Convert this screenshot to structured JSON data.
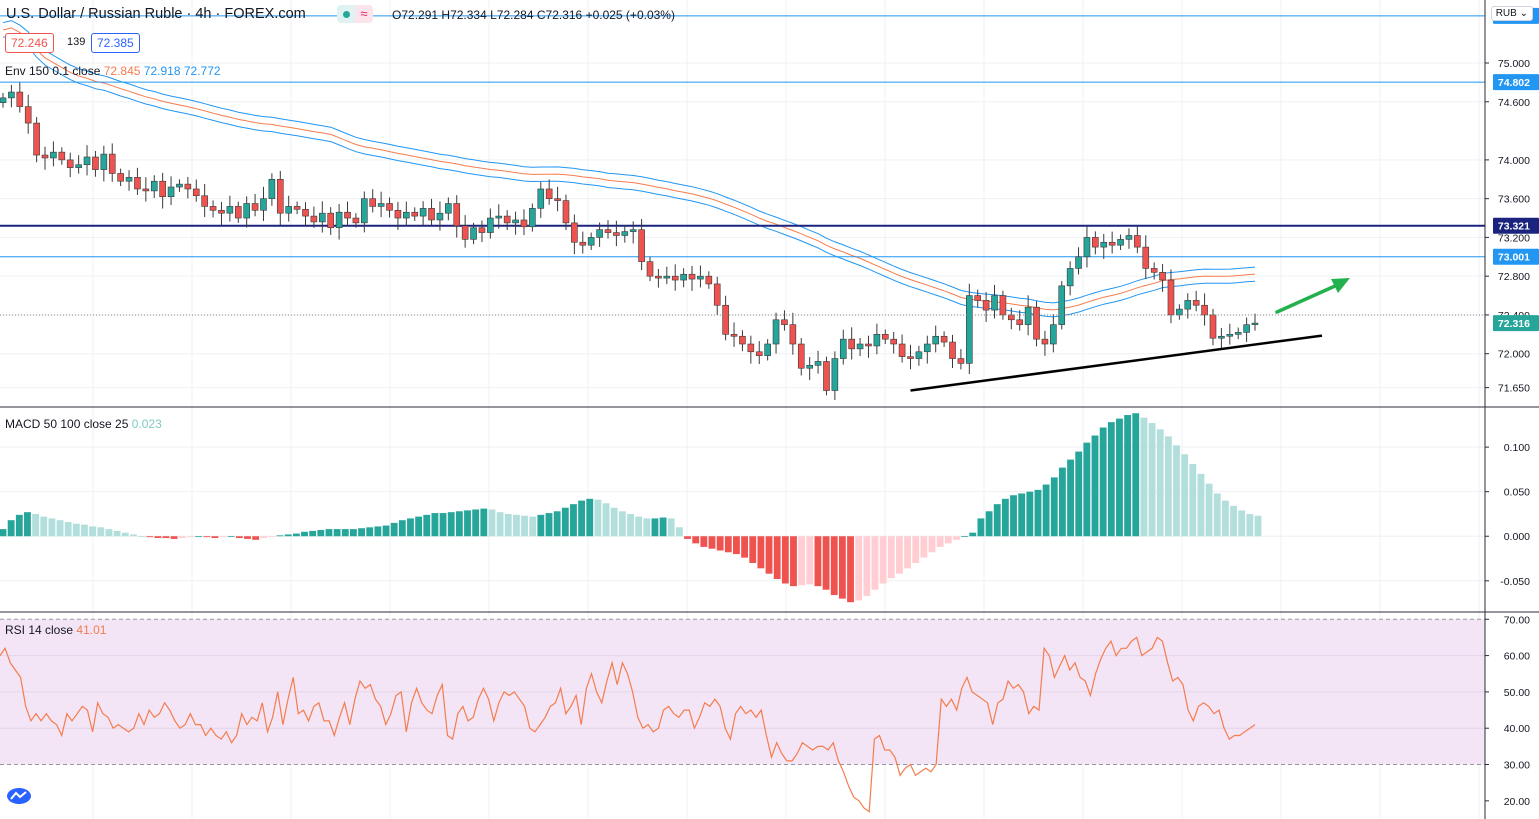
{
  "header": {
    "title": "U.S. Dollar / Russian Ruble · 4h · FOREX.com",
    "ohlc": {
      "open_label": "O",
      "open": "72.291",
      "high_label": "H",
      "high": "72.334",
      "low_label": "L",
      "low": "72.284",
      "close_label": "C",
      "close": "72.316",
      "change": "+0.025 (+0.03%)"
    },
    "sell_price": "72.246",
    "spread": "139",
    "buy_price": "72.385",
    "currency_button": "RUB"
  },
  "colors": {
    "up": "#26a69a",
    "down": "#ef5350",
    "env_mid": "#f57c4d",
    "env_band": "#2196f3",
    "hline": "#2196f3",
    "hline_strong": "#1a237e",
    "trend": "#000000",
    "arrow": "#22b14c",
    "macd_up_strong": "#26a69a",
    "macd_up_weak": "#b2dfdb",
    "macd_down_strong": "#ef5350",
    "macd_down_weak": "#ffcdd2",
    "rsi_line": "#f57c4d",
    "rsi_bg": "#f3e5f5"
  },
  "indicators": {
    "envelope": {
      "label": "Env 150 0.1 close",
      "v1": "72.845",
      "v2": "72.918",
      "v3": "72.772"
    },
    "macd": {
      "label": "MACD 50 100 close 25",
      "value": "0.023"
    },
    "rsi": {
      "label": "RSI 14 close",
      "value": "41.01"
    }
  },
  "chart_data": [
    {
      "type": "candlestick",
      "pane": "price",
      "ylim": [
        71.45,
        75.65
      ],
      "y_ticks": [
        "75.000",
        "74.600",
        "74.000",
        "73.600",
        "73.200",
        "72.800",
        "72.400",
        "72.000",
        "71.650"
      ],
      "horizontal_levels": [
        {
          "value": 75.486,
          "label": "75.486",
          "style": "thin"
        },
        {
          "value": 74.802,
          "label": "74.802",
          "style": "thin"
        },
        {
          "value": 73.321,
          "label": "73.321",
          "style": "thick"
        },
        {
          "value": 73.001,
          "label": "73.001",
          "style": "thin"
        }
      ],
      "last_price": {
        "value": 72.316,
        "label": "72.316"
      },
      "close_series": [
        74.64,
        74.7,
        74.55,
        74.38,
        74.05,
        74.02,
        74.08,
        74.0,
        73.92,
        73.95,
        74.03,
        73.9,
        74.06,
        73.86,
        73.78,
        73.82,
        73.7,
        73.68,
        73.78,
        73.62,
        73.72,
        73.75,
        73.7,
        73.63,
        73.52,
        73.48,
        73.45,
        73.52,
        73.4,
        73.55,
        73.48,
        73.6,
        73.8,
        73.45,
        73.52,
        73.49,
        73.42,
        73.36,
        73.45,
        73.3,
        73.46,
        73.4,
        73.35,
        73.6,
        73.52,
        73.55,
        73.48,
        73.4,
        73.46,
        73.42,
        73.5,
        73.38,
        73.45,
        73.55,
        73.32,
        73.18,
        73.3,
        73.25,
        73.4,
        73.42,
        73.35,
        73.38,
        73.31,
        73.5,
        73.7,
        73.6,
        73.58,
        73.35,
        73.15,
        73.12,
        73.2,
        73.28,
        73.25,
        73.22,
        73.26,
        73.28,
        72.95,
        72.8,
        72.78,
        72.8,
        72.76,
        72.82,
        72.77,
        72.8,
        72.72,
        72.5,
        72.2,
        72.18,
        72.1,
        72.02,
        71.98,
        72.1,
        72.35,
        72.3,
        72.1,
        71.85,
        71.88,
        71.92,
        71.62,
        71.95,
        72.15,
        72.05,
        72.1,
        72.08,
        72.2,
        72.15,
        72.1,
        71.97,
        71.95,
        72.02,
        72.1,
        72.18,
        72.12,
        71.95,
        71.9,
        72.6,
        72.55,
        72.45,
        72.6,
        72.4,
        72.35,
        72.3,
        72.48,
        72.15,
        72.1,
        72.3,
        72.7,
        72.88,
        73.0,
        73.2,
        73.1,
        73.15,
        73.12,
        73.18,
        73.22,
        73.1,
        72.88,
        72.84,
        72.76,
        72.4,
        72.46,
        72.55,
        72.5,
        72.4,
        72.16,
        72.18,
        72.2,
        72.22,
        72.3,
        72.316
      ],
      "trendline": {
        "from": [
          108,
          71.62
        ],
        "to": [
          165,
          72.28
        ]
      }
    },
    {
      "type": "bar",
      "pane": "macd",
      "ylim": [
        -0.085,
        0.145
      ],
      "y_ticks": [
        "0.100",
        "0.050",
        "0.000",
        "-0.050"
      ],
      "values": [
        0.008,
        0.018,
        0.024,
        0.027,
        0.025,
        0.022,
        0.02,
        0.018,
        0.016,
        0.014,
        0.013,
        0.011,
        0.01,
        0.008,
        0.006,
        0.004,
        0.002,
        0.0,
        -0.001,
        -0.002,
        -0.002,
        -0.003,
        -0.002,
        -0.001,
        0.0,
        -0.001,
        -0.002,
        -0.001,
        0.0,
        -0.002,
        -0.003,
        -0.004,
        -0.002,
        -0.001,
        0.001,
        0.002,
        0.003,
        0.005,
        0.006,
        0.007,
        0.008,
        0.008,
        0.008,
        0.008,
        0.009,
        0.01,
        0.011,
        0.012,
        0.015,
        0.018,
        0.02,
        0.022,
        0.024,
        0.026,
        0.026,
        0.027,
        0.028,
        0.029,
        0.03,
        0.031,
        0.03,
        0.027,
        0.025,
        0.024,
        0.023,
        0.022,
        0.024,
        0.026,
        0.028,
        0.032,
        0.036,
        0.04,
        0.042,
        0.041,
        0.037,
        0.032,
        0.028,
        0.025,
        0.022,
        0.02,
        0.02,
        0.021,
        0.02,
        0.01,
        -0.003,
        -0.008,
        -0.012,
        -0.014,
        -0.016,
        -0.018,
        -0.02,
        -0.024,
        -0.03,
        -0.036,
        -0.042,
        -0.048,
        -0.053,
        -0.056,
        -0.055,
        -0.054,
        -0.056,
        -0.06,
        -0.066,
        -0.07,
        -0.074,
        -0.072,
        -0.067,
        -0.06,
        -0.053,
        -0.047,
        -0.042,
        -0.036,
        -0.03,
        -0.024,
        -0.018,
        -0.012,
        -0.008,
        -0.004,
        0.0,
        0.004,
        0.02,
        0.028,
        0.036,
        0.042,
        0.046,
        0.048,
        0.05,
        0.052,
        0.058,
        0.066,
        0.077,
        0.086,
        0.095,
        0.105,
        0.113,
        0.122,
        0.128,
        0.132,
        0.136,
        0.138,
        0.133,
        0.127,
        0.12,
        0.112,
        0.102,
        0.092,
        0.081,
        0.07,
        0.059,
        0.048,
        0.04,
        0.034,
        0.029,
        0.025,
        0.023
      ]
    },
    {
      "type": "line",
      "pane": "rsi",
      "ylim": [
        15,
        72
      ],
      "y_ticks": [
        "70.00",
        "60.00",
        "50.00",
        "40.00",
        "30.00",
        "20.00"
      ],
      "band": [
        30,
        70
      ],
      "values": [
        60,
        62,
        58,
        56,
        54,
        46,
        42,
        44,
        42,
        44,
        42,
        41,
        38,
        44,
        42,
        44,
        46,
        45,
        39,
        47,
        44,
        43,
        40,
        41,
        40,
        39,
        40,
        44,
        41,
        45,
        43,
        44,
        47,
        45,
        42,
        40,
        41,
        44,
        41,
        41,
        38,
        40,
        38,
        37,
        39,
        36,
        38,
        44,
        41,
        43,
        42,
        47,
        39,
        43,
        50,
        41,
        48,
        54,
        44,
        45,
        42,
        46,
        47,
        42,
        42,
        38,
        43,
        47,
        41,
        48,
        53,
        51,
        52,
        48,
        46,
        41,
        44,
        49,
        50,
        39,
        47,
        51,
        47,
        45,
        44,
        49,
        52,
        38,
        37,
        44,
        46,
        42,
        43,
        48,
        51,
        48,
        42,
        47,
        50,
        49,
        50,
        48,
        46,
        40,
        39,
        41,
        43,
        46,
        47,
        51,
        44,
        46,
        49,
        41,
        51,
        55,
        50,
        47,
        53,
        58,
        52,
        58,
        55,
        50,
        43,
        40,
        41,
        39,
        40,
        45,
        46,
        44,
        43,
        45,
        45,
        40,
        43,
        47,
        46,
        48,
        46,
        40,
        37,
        44,
        46,
        44,
        45,
        43,
        45,
        38,
        32,
        36,
        33,
        31,
        31,
        33,
        36,
        35,
        34,
        35,
        35,
        34,
        36,
        31,
        28,
        24,
        21,
        20,
        18,
        17,
        37,
        38,
        34,
        34,
        32,
        27,
        29,
        30,
        27,
        28,
        29,
        28,
        30,
        48,
        46,
        48,
        45,
        51,
        54,
        50,
        49,
        48,
        47,
        41,
        47,
        48,
        53,
        51,
        52,
        50,
        44,
        46,
        45,
        62,
        60,
        54,
        57,
        60,
        56,
        58,
        54,
        53,
        49,
        55,
        59,
        62,
        64,
        60,
        62,
        62,
        64,
        65,
        60,
        61,
        62,
        65,
        64,
        58,
        53,
        54,
        52,
        45,
        42,
        46,
        47,
        46,
        44,
        45,
        40,
        37,
        38,
        38,
        39,
        40,
        41
      ]
    }
  ]
}
